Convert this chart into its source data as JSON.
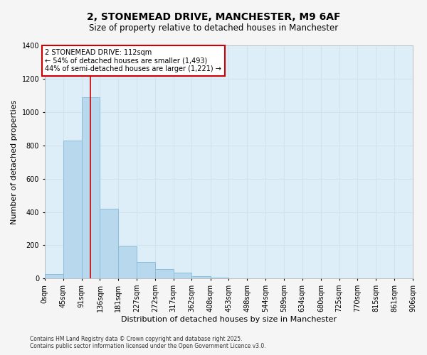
{
  "title": "2, STONEMEAD DRIVE, MANCHESTER, M9 6AF",
  "subtitle": "Size of property relative to detached houses in Manchester",
  "xlabel": "Distribution of detached houses by size in Manchester",
  "ylabel": "Number of detached properties",
  "bar_values": [
    25,
    830,
    1090,
    420,
    195,
    100,
    55,
    35,
    15,
    5,
    2,
    1,
    0,
    0,
    0,
    0,
    0,
    0,
    0,
    0
  ],
  "bar_color": "#b8d8ee",
  "bar_edge_color": "#8bbcda",
  "bin_edges": [
    0,
    45,
    91,
    136,
    181,
    227,
    272,
    317,
    362,
    408,
    453,
    498,
    544,
    589,
    634,
    680,
    725,
    770,
    815,
    861,
    906
  ],
  "x_tick_labels": [
    "0sqm",
    "45sqm",
    "91sqm",
    "136sqm",
    "181sqm",
    "227sqm",
    "272sqm",
    "317sqm",
    "362sqm",
    "408sqm",
    "453sqm",
    "498sqm",
    "544sqm",
    "589sqm",
    "634sqm",
    "680sqm",
    "725sqm",
    "770sqm",
    "815sqm",
    "861sqm",
    "906sqm"
  ],
  "property_size": 112,
  "vline_color": "#cc0000",
  "annotation_title": "2 STONEMEAD DRIVE: 112sqm",
  "annotation_line1": "← 54% of detached houses are smaller (1,493)",
  "annotation_line2": "44% of semi-detached houses are larger (1,221) →",
  "annotation_box_color": "#cc0000",
  "ylim": [
    0,
    1400
  ],
  "yticks": [
    0,
    200,
    400,
    600,
    800,
    1000,
    1200,
    1400
  ],
  "grid_color": "#d0e4f0",
  "plot_bg_color": "#ddeef8",
  "fig_bg_color": "#f5f5f5",
  "footer_line1": "Contains HM Land Registry data © Crown copyright and database right 2025.",
  "footer_line2": "Contains public sector information licensed under the Open Government Licence v3.0.",
  "title_fontsize": 10,
  "subtitle_fontsize": 8.5,
  "ylabel_fontsize": 8,
  "xlabel_fontsize": 8,
  "tick_fontsize": 7,
  "annotation_fontsize": 7,
  "footer_fontsize": 5.5
}
